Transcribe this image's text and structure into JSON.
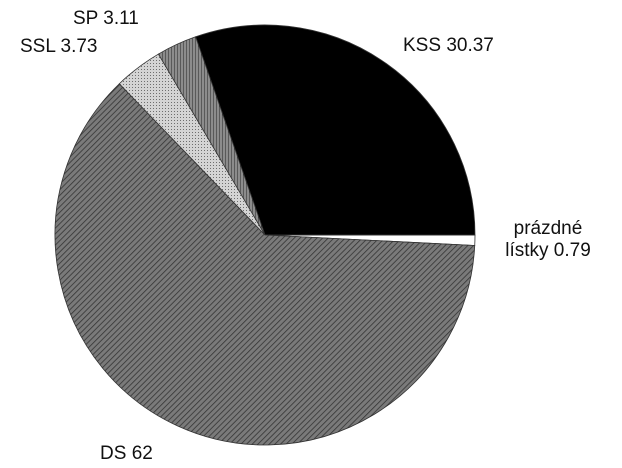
{
  "chart_data": {
    "type": "pie",
    "categories": [
      "KSS",
      "prázdné lístky",
      "DS",
      "SSL",
      "SP"
    ],
    "values": [
      30.37,
      0.79,
      62,
      3.73,
      3.11
    ],
    "colors": [
      "#000000",
      "#ffffff",
      "#7a7a7a",
      "#d4d4d4",
      "#8c8c8c"
    ]
  }
}
